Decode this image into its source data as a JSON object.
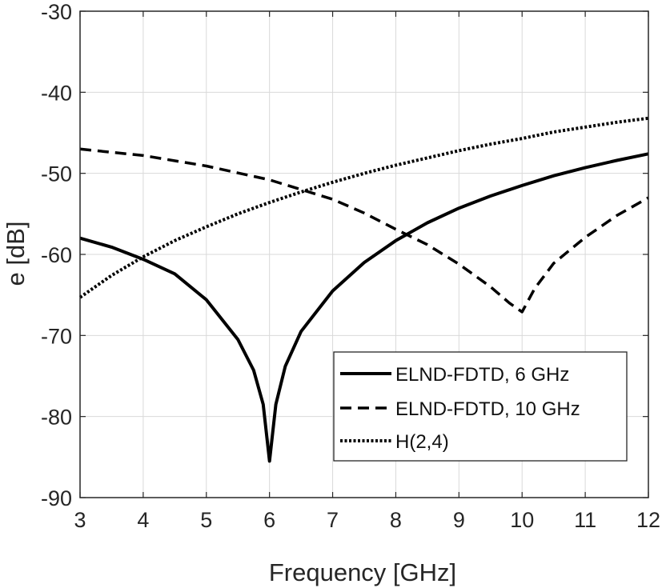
{
  "chart_data": {
    "type": "line",
    "xlabel": "Frequency [GHz]",
    "ylabel": "e [dB]",
    "xlim": [
      3,
      12
    ],
    "ylim": [
      -90,
      -30
    ],
    "xticks": [
      "3",
      "4",
      "5",
      "6",
      "7",
      "8",
      "9",
      "10",
      "11",
      "12"
    ],
    "yticks": [
      "-30",
      "-40",
      "-50",
      "-60",
      "-70",
      "-80",
      "-90"
    ],
    "grid": true,
    "legend_position": "bottom-right",
    "series": [
      {
        "name": "ELND-FDTD, 6 GHz",
        "style": "solid",
        "color": "#000000",
        "x": [
          3,
          3.5,
          4,
          4.5,
          5,
          5.5,
          5.75,
          5.9,
          6,
          6.1,
          6.25,
          6.5,
          7,
          7.5,
          8,
          8.5,
          9,
          9.5,
          10,
          10.5,
          11,
          11.5,
          12
        ],
        "y": [
          -58,
          -59.1,
          -60.6,
          -62.4,
          -65.6,
          -70.5,
          -74.3,
          -78.5,
          -85.5,
          -78.5,
          -73.8,
          -69.5,
          -64.5,
          -61,
          -58.3,
          -56.1,
          -54.3,
          -52.8,
          -51.5,
          -50.3,
          -49.3,
          -48.4,
          -47.6
        ]
      },
      {
        "name": "ELND-FDTD, 10 GHz",
        "style": "dashed",
        "color": "#000000",
        "x": [
          3,
          4,
          5,
          6,
          7,
          7.5,
          8,
          8.5,
          9,
          9.5,
          9.8,
          10,
          10.2,
          10.5,
          11,
          11.5,
          12
        ],
        "y": [
          -47,
          -47.8,
          -49.1,
          -50.8,
          -53.2,
          -54.9,
          -56.9,
          -58.8,
          -61.2,
          -64,
          -66,
          -67.1,
          -64.2,
          -61.1,
          -57.9,
          -55.2,
          -53
        ]
      },
      {
        "name": "H(2,4)",
        "style": "dotted",
        "color": "#000000",
        "x": [
          3,
          3.5,
          4,
          4.5,
          5,
          5.5,
          6,
          6.5,
          7,
          7.5,
          8,
          8.5,
          9,
          9.5,
          10,
          10.5,
          11,
          11.5,
          12
        ],
        "y": [
          -65.3,
          -62.6,
          -60.3,
          -58.3,
          -56.6,
          -55,
          -53.6,
          -52.3,
          -51.1,
          -50,
          -49,
          -48.1,
          -47.2,
          -46.4,
          -45.7,
          -44.9,
          -44.3,
          -43.7,
          -43.2
        ]
      }
    ]
  }
}
